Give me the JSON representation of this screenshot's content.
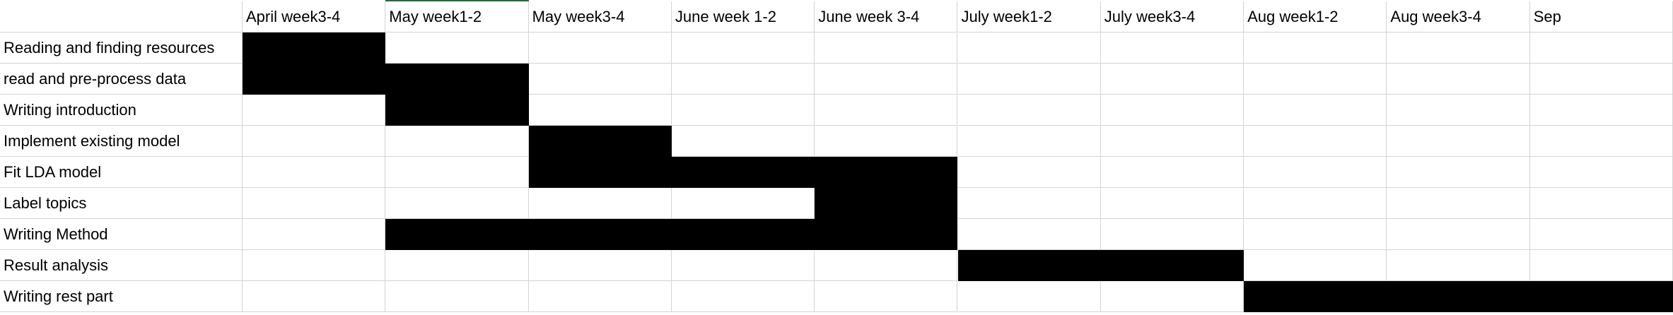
{
  "chart_data": {
    "type": "table",
    "title": "",
    "columns": [
      "April week3-4",
      "May week1-2",
      "May week3-4",
      "June week 1-2",
      "June week 3-4",
      "July week1-2",
      "July week3-4",
      "Aug week1-2",
      "Aug week3-4",
      "Sep"
    ],
    "tasks": [
      {
        "name": "Reading and finding resources",
        "start": 0,
        "end": 0
      },
      {
        "name": "read and pre-process data",
        "start": 0,
        "end": 1
      },
      {
        "name": "Writing introduction",
        "start": 1,
        "end": 1
      },
      {
        "name": "Implement existing model",
        "start": 2,
        "end": 2
      },
      {
        "name": "Fit LDA model",
        "start": 2,
        "end": 4
      },
      {
        "name": "Label topics",
        "start": 4,
        "end": 4
      },
      {
        "name": "Writing Method",
        "start": 1,
        "end": 4
      },
      {
        "name": "Result analysis",
        "start": 5,
        "end": 6
      },
      {
        "name": "Writing rest part",
        "start": 7,
        "end": 9
      }
    ],
    "fill_color": "#000000",
    "grid_color": "#d4d4d4",
    "selected_accent_color": "#1e6e3a"
  }
}
